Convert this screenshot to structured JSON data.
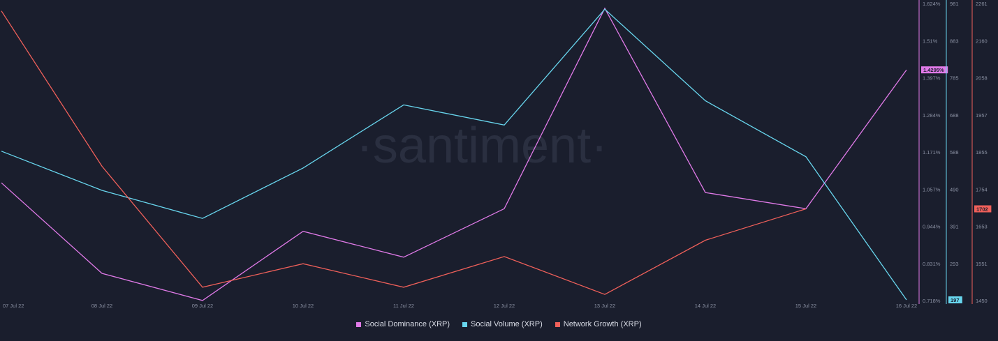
{
  "watermark": "·santiment·",
  "colors": {
    "background": "#1a1e2d",
    "social_dominance": "#e07ae8",
    "social_volume": "#68d6ee",
    "network_growth": "#f0605a",
    "tick_text": "#8b91a3"
  },
  "chart_data": {
    "type": "line",
    "title": "",
    "x": [
      "07 Jul 22",
      "08 Jul 22",
      "09 Jul 22",
      "10 Jul 22",
      "11 Jul 22",
      "12 Jul 22",
      "13 Jul 22",
      "14 Jul 22",
      "15 Jul 22",
      "16 Jul 22"
    ],
    "axes": {
      "social_dominance": {
        "ticks": [
          "1.624%",
          "1.51%",
          "1.397%",
          "1.284%",
          "1.171%",
          "1.057%",
          "0.944%",
          "0.831%",
          "0.718%"
        ],
        "range": [
          0.718,
          1.624
        ],
        "current_label": "1.4295%",
        "current_value": 1.4295
      },
      "social_volume": {
        "ticks": [
          "981",
          "883",
          "785",
          "688",
          "588",
          "490",
          "391",
          "293",
          "197"
        ],
        "range": [
          197,
          981
        ],
        "current_label": "197",
        "current_value": 197
      },
      "network_growth": {
        "ticks": [
          "2261",
          "2160",
          "2058",
          "1957",
          "1855",
          "1754",
          "1653",
          "1551",
          "1450"
        ],
        "range": [
          1450,
          2261
        ],
        "current_label": "1702",
        "current_value": 1702
      }
    },
    "series": [
      {
        "name": "Social Dominance (XRP)",
        "axis": "social_dominance",
        "values": [
          1.08,
          0.8,
          0.716,
          0.93,
          0.85,
          1.0,
          1.62,
          1.05,
          1.0,
          1.4295
        ]
      },
      {
        "name": "Social Volume (XRP)",
        "axis": "social_volume",
        "values": [
          595,
          490,
          415,
          550,
          719,
          665,
          975,
          730,
          580,
          197
        ]
      },
      {
        "name": "Network Growth (XRP)",
        "axis": "network_growth",
        "values": [
          2250,
          1820,
          1485,
          1550,
          1485,
          1570,
          1465,
          1615,
          1702,
          null
        ]
      }
    ],
    "grid": false,
    "legend_position": "bottom-center"
  }
}
